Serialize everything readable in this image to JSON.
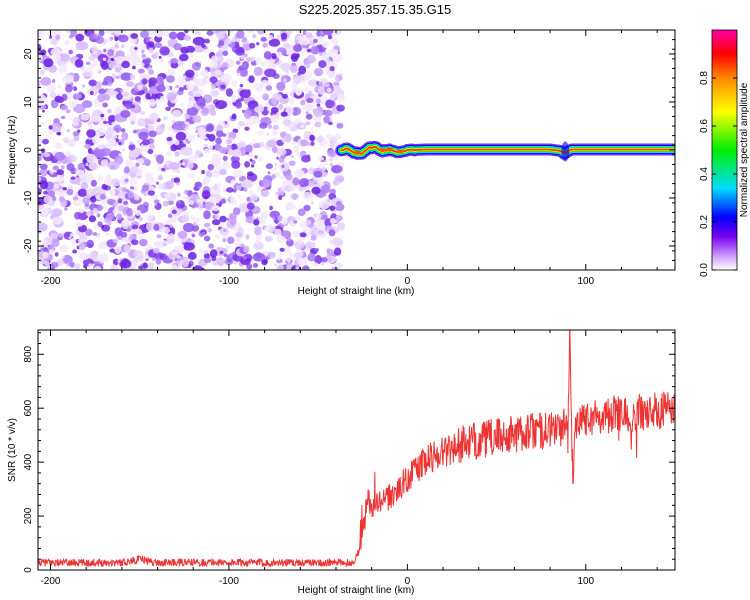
{
  "figure_title": "S225.2025.357.15.35.G15",
  "chart_data": [
    {
      "type": "heatmap",
      "title": "S225.2025.357.15.35.G15",
      "xlabel": "Height of straight line (km)",
      "ylabel": "Frequency (Hz)",
      "xlim": [
        -207,
        150
      ],
      "ylim": [
        -25,
        25
      ],
      "xticks": [
        -200,
        -100,
        0,
        100
      ],
      "xtick_labels": [
        "-200",
        "-100",
        "0",
        "100"
      ],
      "yticks": [
        -20,
        -10,
        0,
        10,
        20
      ],
      "ytick_labels": [
        "-20",
        "-10",
        "0",
        "10",
        "20"
      ],
      "noise_region_x": [
        -207,
        -37
      ],
      "signal": {
        "x": [
          -37,
          -34,
          -30,
          -26,
          -22,
          -18,
          -14,
          -10,
          -6,
          -2,
          0,
          4,
          10,
          20,
          40,
          60,
          80,
          86,
          88,
          90,
          92,
          100,
          120,
          150
        ],
        "freq": [
          0,
          0.3,
          -0.6,
          -0.8,
          0.4,
          0.6,
          -0.2,
          0.1,
          -0.5,
          -0.2,
          0,
          0,
          0.1,
          0.1,
          0.1,
          0.1,
          0.1,
          -0.2,
          -0.8,
          -0.3,
          0.1,
          0.1,
          0.1,
          0.1
        ],
        "amplitude": "peak near 1.0 along the ridge, falling off to about 0.2 at its edges"
      },
      "colorbar": {
        "label": "Normalized spectral amplitude",
        "range": [
          0,
          1
        ],
        "ticks": [
          0.0,
          0.2,
          0.4,
          0.6,
          0.8
        ],
        "tick_labels": [
          "0.0",
          "0.2",
          "0.4",
          "0.6",
          "0.8"
        ],
        "colormap": [
          "#ffffff",
          "#cc99ff",
          "#7700ee",
          "#0000ff",
          "#00ddff",
          "#00ee00",
          "#ffff00",
          "#ff8800",
          "#ff0000",
          "#ff00aa"
        ]
      }
    },
    {
      "type": "line",
      "xlabel": "Height of straight line (km)",
      "ylabel": "SNR (10 * v/v)",
      "xlim": [
        -207,
        150
      ],
      "ylim": [
        0,
        890
      ],
      "xticks": [
        -200,
        -100,
        0,
        100
      ],
      "xtick_labels": [
        "-200",
        "-100",
        "0",
        "100"
      ],
      "yticks": [
        0,
        200,
        400,
        600,
        800
      ],
      "ytick_labels": [
        "0",
        "200",
        "400",
        "600",
        "800"
      ],
      "series": [
        {
          "name": "SNR",
          "color": "#ee3333",
          "x": [
            -207,
            -180,
            -160,
            -150,
            -140,
            -120,
            -100,
            -80,
            -60,
            -40,
            -30,
            -26,
            -24,
            -22,
            -20,
            -15,
            -10,
            -5,
            0,
            5,
            10,
            15,
            20,
            25,
            30,
            40,
            50,
            60,
            70,
            80,
            88,
            90,
            91,
            92,
            93,
            94,
            95,
            96,
            100,
            110,
            120,
            130,
            140,
            150
          ],
          "y": [
            28,
            27,
            28,
            40,
            27,
            28,
            28,
            27,
            27,
            27,
            28,
            90,
            175,
            260,
            230,
            250,
            270,
            300,
            340,
            375,
            400,
            425,
            440,
            455,
            465,
            480,
            495,
            505,
            515,
            520,
            530,
            500,
            890,
            530,
            280,
            540,
            560,
            570,
            565,
            575,
            580,
            585,
            590,
            600
          ]
        }
      ]
    }
  ]
}
